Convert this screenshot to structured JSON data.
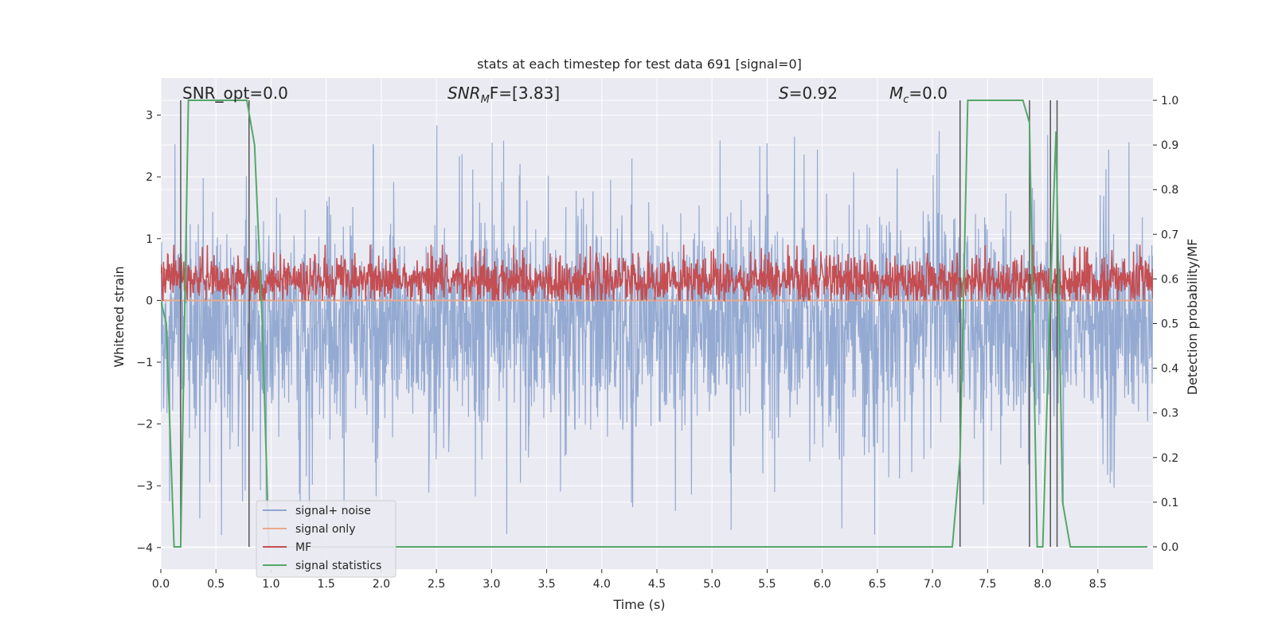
{
  "chart_data": {
    "type": "line",
    "title": "stats at each timestep for test data 691 [signal=0]",
    "xlabel": "Time (s)",
    "ylabel": "Whitened strain",
    "ylabel_right": "Detection probability/MF",
    "xlim": [
      0.0,
      9.0
    ],
    "ylim": [
      -4.35,
      3.6
    ],
    "ylim_right": [
      -0.05,
      1.05
    ],
    "x_ticks": [
      0.0,
      0.5,
      1.0,
      1.5,
      2.0,
      2.5,
      3.0,
      3.5,
      4.0,
      4.5,
      5.0,
      5.5,
      6.0,
      6.5,
      7.0,
      7.5,
      8.0,
      8.5
    ],
    "x_tick_labels": [
      "0.0",
      "0.5",
      "1.0",
      "1.5",
      "2.0",
      "2.5",
      "3.0",
      "3.5",
      "4.0",
      "4.5",
      "5.0",
      "5.5",
      "6.0",
      "6.5",
      "7.0",
      "7.5",
      "8.0",
      "8.5"
    ],
    "y_ticks": [
      -4,
      -3,
      -2,
      -1,
      0,
      1,
      2,
      3
    ],
    "y_tick_labels": [
      "−4",
      "−3",
      "−2",
      "−1",
      "0",
      "1",
      "2",
      "3"
    ],
    "y_right_ticks": [
      0.0,
      0.1,
      0.2,
      0.3,
      0.4,
      0.5,
      0.6,
      0.7,
      0.8,
      0.9,
      1.0
    ],
    "y_right_tick_labels": [
      "0.0",
      "0.1",
      "0.2",
      "0.3",
      "0.4",
      "0.5",
      "0.6",
      "0.7",
      "0.8",
      "0.9",
      "1.0"
    ],
    "grid": true,
    "legend_position": "lower-left",
    "annotations": {
      "snr_opt": "SNR_opt=0.0",
      "snr_mf_label": "SNR",
      "snr_mf_sub": "M",
      "snr_mf_rest": "F=[3.83]",
      "s_label": "S",
      "s_rest": "=0.92",
      "mc_label": "M",
      "mc_sub": "c",
      "mc_rest": "=0.0"
    },
    "series": [
      {
        "name": "signal+ noise",
        "color": "#8fa6d0",
        "style": "noise band",
        "baseline": -0.4,
        "typical_range": [
          -1.5,
          1.8
        ],
        "extremes": [
          -4.0,
          3.0
        ]
      },
      {
        "name": "signal only",
        "color": "#e8a98c",
        "style": "flat line",
        "value": 0.0
      },
      {
        "name": "MF",
        "color": "#c44e52",
        "style": "noise band",
        "typical_range": [
          0.0,
          0.9
        ]
      },
      {
        "name": "signal statistics",
        "color": "#55a868",
        "axis": "right",
        "x": [
          0.0,
          0.05,
          0.12,
          0.18,
          0.25,
          0.78,
          0.85,
          0.92,
          0.98,
          1.05,
          7.18,
          7.25,
          7.32,
          7.82,
          7.88,
          7.95,
          8.0,
          8.06,
          8.12,
          8.18,
          8.25,
          8.95
        ],
        "values": [
          0.55,
          0.5,
          0.0,
          0.0,
          1.0,
          1.0,
          0.9,
          0.5,
          0.0,
          0.0,
          0.0,
          0.2,
          1.0,
          1.0,
          0.95,
          0.0,
          0.0,
          0.5,
          0.93,
          0.1,
          0.0,
          0.0
        ]
      }
    ],
    "vertical_markers": {
      "color": "#555555",
      "x": [
        0.18,
        0.8,
        7.25,
        7.88,
        8.07,
        8.13
      ]
    }
  }
}
